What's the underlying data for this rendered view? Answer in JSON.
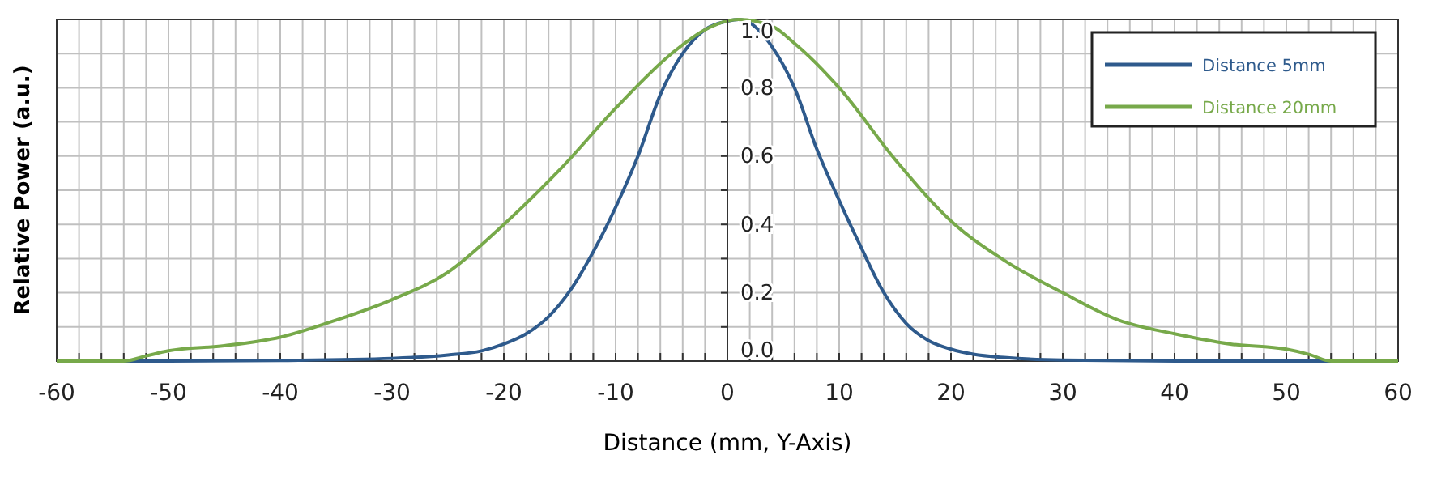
{
  "chart_data": {
    "type": "line",
    "xlabel": "Distance (mm, Y-Axis)",
    "ylabel": "Relative Power (a.u.)",
    "xlim": [
      -60,
      60
    ],
    "ylim": [
      0,
      1.0
    ],
    "xticks": [
      -60,
      {
        "value": -58,
        "label": null
      },
      {
        "value": -56,
        "label": null
      },
      {
        "value": -54,
        "label": null
      },
      {
        "value": -52,
        "label": null
      },
      -50,
      {
        "value": -48,
        "label": null
      },
      {
        "value": -46,
        "label": null
      },
      {
        "value": -44,
        "label": null
      },
      {
        "value": -42,
        "label": null
      },
      -40,
      {
        "value": -38,
        "label": null
      },
      {
        "value": -36,
        "label": null
      },
      {
        "value": -34,
        "label": null
      },
      {
        "value": -32,
        "label": null
      },
      -30,
      {
        "value": -28,
        "label": null
      },
      {
        "value": -26,
        "label": null
      },
      {
        "value": -24,
        "label": null
      },
      {
        "value": -22,
        "label": null
      },
      -20,
      {
        "value": -18,
        "label": null
      },
      {
        "value": -16,
        "label": null
      },
      {
        "value": -14,
        "label": null
      },
      {
        "value": -12,
        "label": null
      },
      -10,
      {
        "value": -8,
        "label": null
      },
      {
        "value": -6,
        "label": null
      },
      {
        "value": -4,
        "label": null
      },
      {
        "value": -2,
        "label": null
      },
      0,
      {
        "value": 2,
        "label": null
      },
      {
        "value": 4,
        "label": null
      },
      {
        "value": 6,
        "label": null
      },
      {
        "value": 8,
        "label": null
      },
      10,
      {
        "value": 12,
        "label": null
      },
      {
        "value": 14,
        "label": null
      },
      {
        "value": 16,
        "label": null
      },
      {
        "value": 18,
        "label": null
      },
      20,
      {
        "value": 22,
        "label": null
      },
      {
        "value": 24,
        "label": null
      },
      {
        "value": 26,
        "label": null
      },
      {
        "value": 28,
        "label": null
      },
      30,
      {
        "value": 32,
        "label": null
      },
      {
        "value": 34,
        "label": null
      },
      {
        "value": 36,
        "label": null
      },
      {
        "value": 38,
        "label": null
      },
      40,
      {
        "value": 42,
        "label": null
      },
      {
        "value": 44,
        "label": null
      },
      {
        "value": 46,
        "label": null
      },
      {
        "value": 48,
        "label": null
      },
      50,
      {
        "value": 52,
        "label": null
      },
      {
        "value": 54,
        "label": null
      },
      {
        "value": 56,
        "label": null
      },
      {
        "value": 58,
        "label": null
      },
      60
    ],
    "yticks": [
      {
        "value": 0,
        "label": "0.0"
      },
      {
        "value": 0.1,
        "label": null
      },
      0.2,
      {
        "value": 0.3,
        "label": null
      },
      0.4,
      {
        "value": 0.5,
        "label": null
      },
      0.6,
      {
        "value": 0.7,
        "label": null
      },
      0.8,
      {
        "value": 0.9,
        "label": null
      },
      {
        "value": 1.0,
        "label": "1.0"
      }
    ],
    "grid": true,
    "legend": "top right",
    "marker": "none",
    "line_style": "solid",
    "series": [
      {
        "name": "Distance 5mm",
        "color": "#2e5a8c",
        "x": [
          -60,
          -50,
          -40,
          -30,
          -25,
          -22,
          -20,
          -18,
          -16,
          -14,
          -12,
          -10,
          -8,
          -6,
          -4,
          -2,
          0,
          1,
          2,
          4,
          6,
          8,
          10,
          12,
          14,
          16,
          18,
          20,
          22,
          25,
          30,
          40,
          50,
          60
        ],
        "values": [
          0,
          0,
          0.002,
          0.008,
          0.018,
          0.03,
          0.05,
          0.08,
          0.13,
          0.21,
          0.32,
          0.45,
          0.6,
          0.78,
          0.9,
          0.97,
          0.995,
          1.0,
          0.99,
          0.92,
          0.8,
          0.62,
          0.47,
          0.33,
          0.2,
          0.11,
          0.06,
          0.035,
          0.02,
          0.01,
          0.003,
          0,
          0,
          0
        ]
      },
      {
        "name": "Distance 20mm",
        "color": "#77a94a",
        "x": [
          -60,
          -54,
          -52,
          -50,
          -45,
          -40,
          -35,
          -30,
          -25,
          -20,
          -15,
          -10,
          -5,
          -2,
          1,
          4,
          6,
          10,
          15,
          20,
          25,
          30,
          35,
          40,
          45,
          50,
          52,
          54,
          60
        ],
        "values": [
          0,
          0,
          0.015,
          0.03,
          0.045,
          0.07,
          0.12,
          0.18,
          0.26,
          0.4,
          0.56,
          0.74,
          0.9,
          0.97,
          1.0,
          0.98,
          0.93,
          0.8,
          0.59,
          0.41,
          0.29,
          0.2,
          0.12,
          0.08,
          0.05,
          0.035,
          0.02,
          0,
          0
        ]
      }
    ]
  }
}
